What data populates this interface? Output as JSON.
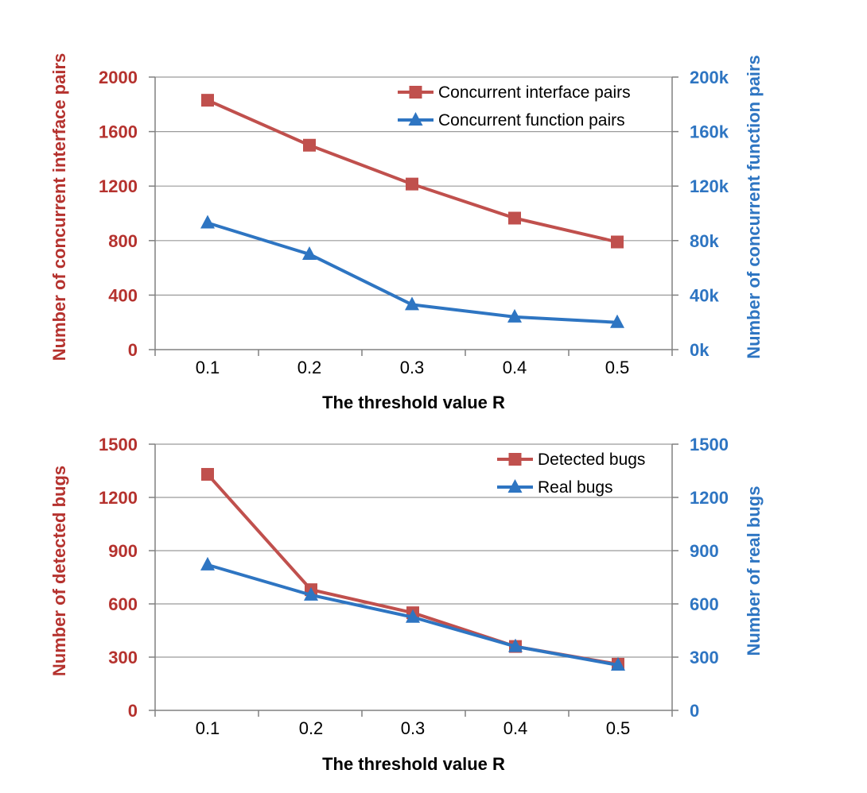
{
  "colors": {
    "red": "#c0504d",
    "red_text": "#b5322e",
    "blue": "#2e75c2",
    "blue_text": "#2e75c2",
    "axis": "#808080",
    "grid": "#9a9a9a"
  },
  "chart_data": [
    {
      "type": "line",
      "xlabel": "The threshold value R",
      "ylabel": "Number of concurrent interface pairs",
      "y2label": "Number of concurrent function pairs",
      "categories": [
        "0.1",
        "0.2",
        "0.3",
        "0.4",
        "0.5"
      ],
      "ylim": [
        0,
        2000
      ],
      "yticks": [
        0,
        400,
        800,
        1200,
        1600,
        2000
      ],
      "ytick_labels": [
        "0",
        "400",
        "800",
        "1200",
        "1600",
        "2000"
      ],
      "y2lim": [
        0,
        200000
      ],
      "y2ticks": [
        0,
        40000,
        80000,
        120000,
        160000,
        200000
      ],
      "y2tick_labels": [
        "0k",
        "40k",
        "80k",
        "120k",
        "160k",
        "200k"
      ],
      "grid": true,
      "legend_position": "top-right",
      "series": [
        {
          "name": "Concurrent interface pairs",
          "axis": "left",
          "marker": "square",
          "color": "#c0504d",
          "values": [
            1830,
            1500,
            1215,
            965,
            790
          ]
        },
        {
          "name": "Concurrent function pairs",
          "axis": "right",
          "marker": "triangle",
          "color": "#2e75c2",
          "values": [
            93000,
            70000,
            33000,
            24000,
            20000
          ]
        }
      ]
    },
    {
      "type": "line",
      "xlabel": "The threshold value R",
      "ylabel": "Number of detected bugs",
      "y2label": "Number of real bugs",
      "categories": [
        "0.1",
        "0.2",
        "0.3",
        "0.4",
        "0.5"
      ],
      "ylim": [
        0,
        1500
      ],
      "yticks": [
        0,
        300,
        600,
        900,
        1200,
        1500
      ],
      "ytick_labels": [
        "0",
        "300",
        "600",
        "900",
        "1200",
        "1500"
      ],
      "y2lim": [
        0,
        1500
      ],
      "y2ticks": [
        0,
        300,
        600,
        900,
        1200,
        1500
      ],
      "y2tick_labels": [
        "0",
        "300",
        "600",
        "900",
        "1200",
        "1500"
      ],
      "grid": true,
      "legend_position": "top-right",
      "series": [
        {
          "name": "Detected bugs",
          "axis": "left",
          "marker": "square",
          "color": "#c0504d",
          "values": [
            1330,
            680,
            550,
            360,
            260
          ]
        },
        {
          "name": "Real bugs",
          "axis": "right",
          "marker": "triangle",
          "color": "#2e75c2",
          "values": [
            820,
            650,
            525,
            360,
            255
          ]
        }
      ]
    }
  ]
}
